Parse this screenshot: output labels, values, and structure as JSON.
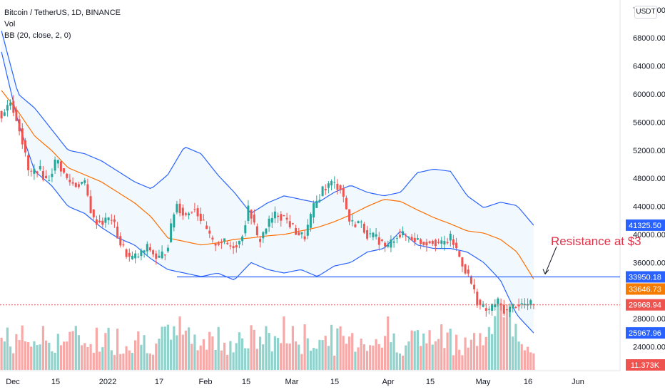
{
  "legend": {
    "symbol": "Bitcoin / TetherUS, 1D, BINANCE",
    "vol": "Vol",
    "bb": "BB (20, close, 2, 0)"
  },
  "unit": "USDT",
  "chart_data": {
    "type": "candlestick",
    "y_range": [
      20600,
      73400
    ],
    "y_ticks": [
      "72000.00",
      "68000.00",
      "64000.00",
      "60000.00",
      "56000.00",
      "52000.00",
      "48000.00",
      "44000.00",
      "40000.00",
      "36000.00",
      "32000.00",
      "28000.00",
      "24000.00"
    ],
    "x_labels": [
      "Dec",
      "15",
      "2022",
      "17",
      "Feb",
      "15",
      "Mar",
      "15",
      "Apr",
      "15",
      "May",
      "16",
      "Jun"
    ],
    "price_tags": [
      {
        "label": "41325.50",
        "value": 41325.5,
        "color": "#2962ff"
      },
      {
        "label": "33950.18",
        "value": 33950.18,
        "color": "#2962ff"
      },
      {
        "label": "33646.73",
        "value": 33646.73,
        "color": "#f57c00"
      },
      {
        "label": "29968.94",
        "value": 29968.94,
        "color": "#ef5350"
      },
      {
        "label": "25967.96",
        "value": 25967.96,
        "color": "#2962ff"
      },
      {
        "label": "11.373K",
        "value": null,
        "color": "#ef5350"
      }
    ],
    "horizontal_line": 33950.18,
    "annotation": "Resistance at $3",
    "last_close": 29968.94,
    "bb_upper_key": [
      69000,
      60000,
      58000,
      55000,
      52000,
      51500,
      50500,
      49000,
      47500,
      46500,
      48500,
      52500,
      51500,
      48500,
      46000,
      43000,
      44500,
      45500,
      45000,
      44500,
      46000,
      47000,
      46000,
      45500,
      46000,
      48800,
      49300,
      49000,
      45500,
      43800,
      44600,
      44100,
      41300
    ],
    "bb_basis_key": [
      60500,
      57500,
      54000,
      52000,
      49500,
      48500,
      47500,
      46000,
      44500,
      42500,
      39500,
      39000,
      38500,
      38800,
      39300,
      39500,
      39800,
      40000,
      40500,
      41000,
      41800,
      42800,
      44000,
      45000,
      44700,
      43500,
      42400,
      41500,
      40500,
      40200,
      39300,
      37500,
      33650
    ],
    "bb_lower_key": [
      66000,
      56000,
      49000,
      47000,
      44000,
      43000,
      41000,
      39500,
      38500,
      36500,
      35000,
      34500,
      34000,
      34500,
      33500,
      36000,
      35000,
      34500,
      35000,
      34000,
      35500,
      36000,
      37500,
      38000,
      40500,
      38500,
      38000,
      38000,
      37500,
      36000,
      33500,
      28500,
      25970
    ],
    "candles_key": [
      57000,
      59000,
      55000,
      48500,
      49500,
      47500,
      50800,
      48000,
      47000,
      47500,
      42000,
      41800,
      42300,
      38500,
      36500,
      37000,
      38200,
      36400,
      37800,
      44500,
      42600,
      44000,
      41500,
      38700,
      39000,
      38300,
      39000,
      44000,
      38800,
      41500,
      43000,
      42200,
      40500,
      39500,
      43700,
      46500,
      47300,
      46700,
      41500,
      41800,
      39800,
      39400,
      38000,
      40000,
      39800,
      39400,
      38800,
      39200,
      38500,
      39500,
      36500,
      33700,
      30000,
      29000,
      30500,
      28900,
      30100,
      30000,
      29969
    ]
  }
}
